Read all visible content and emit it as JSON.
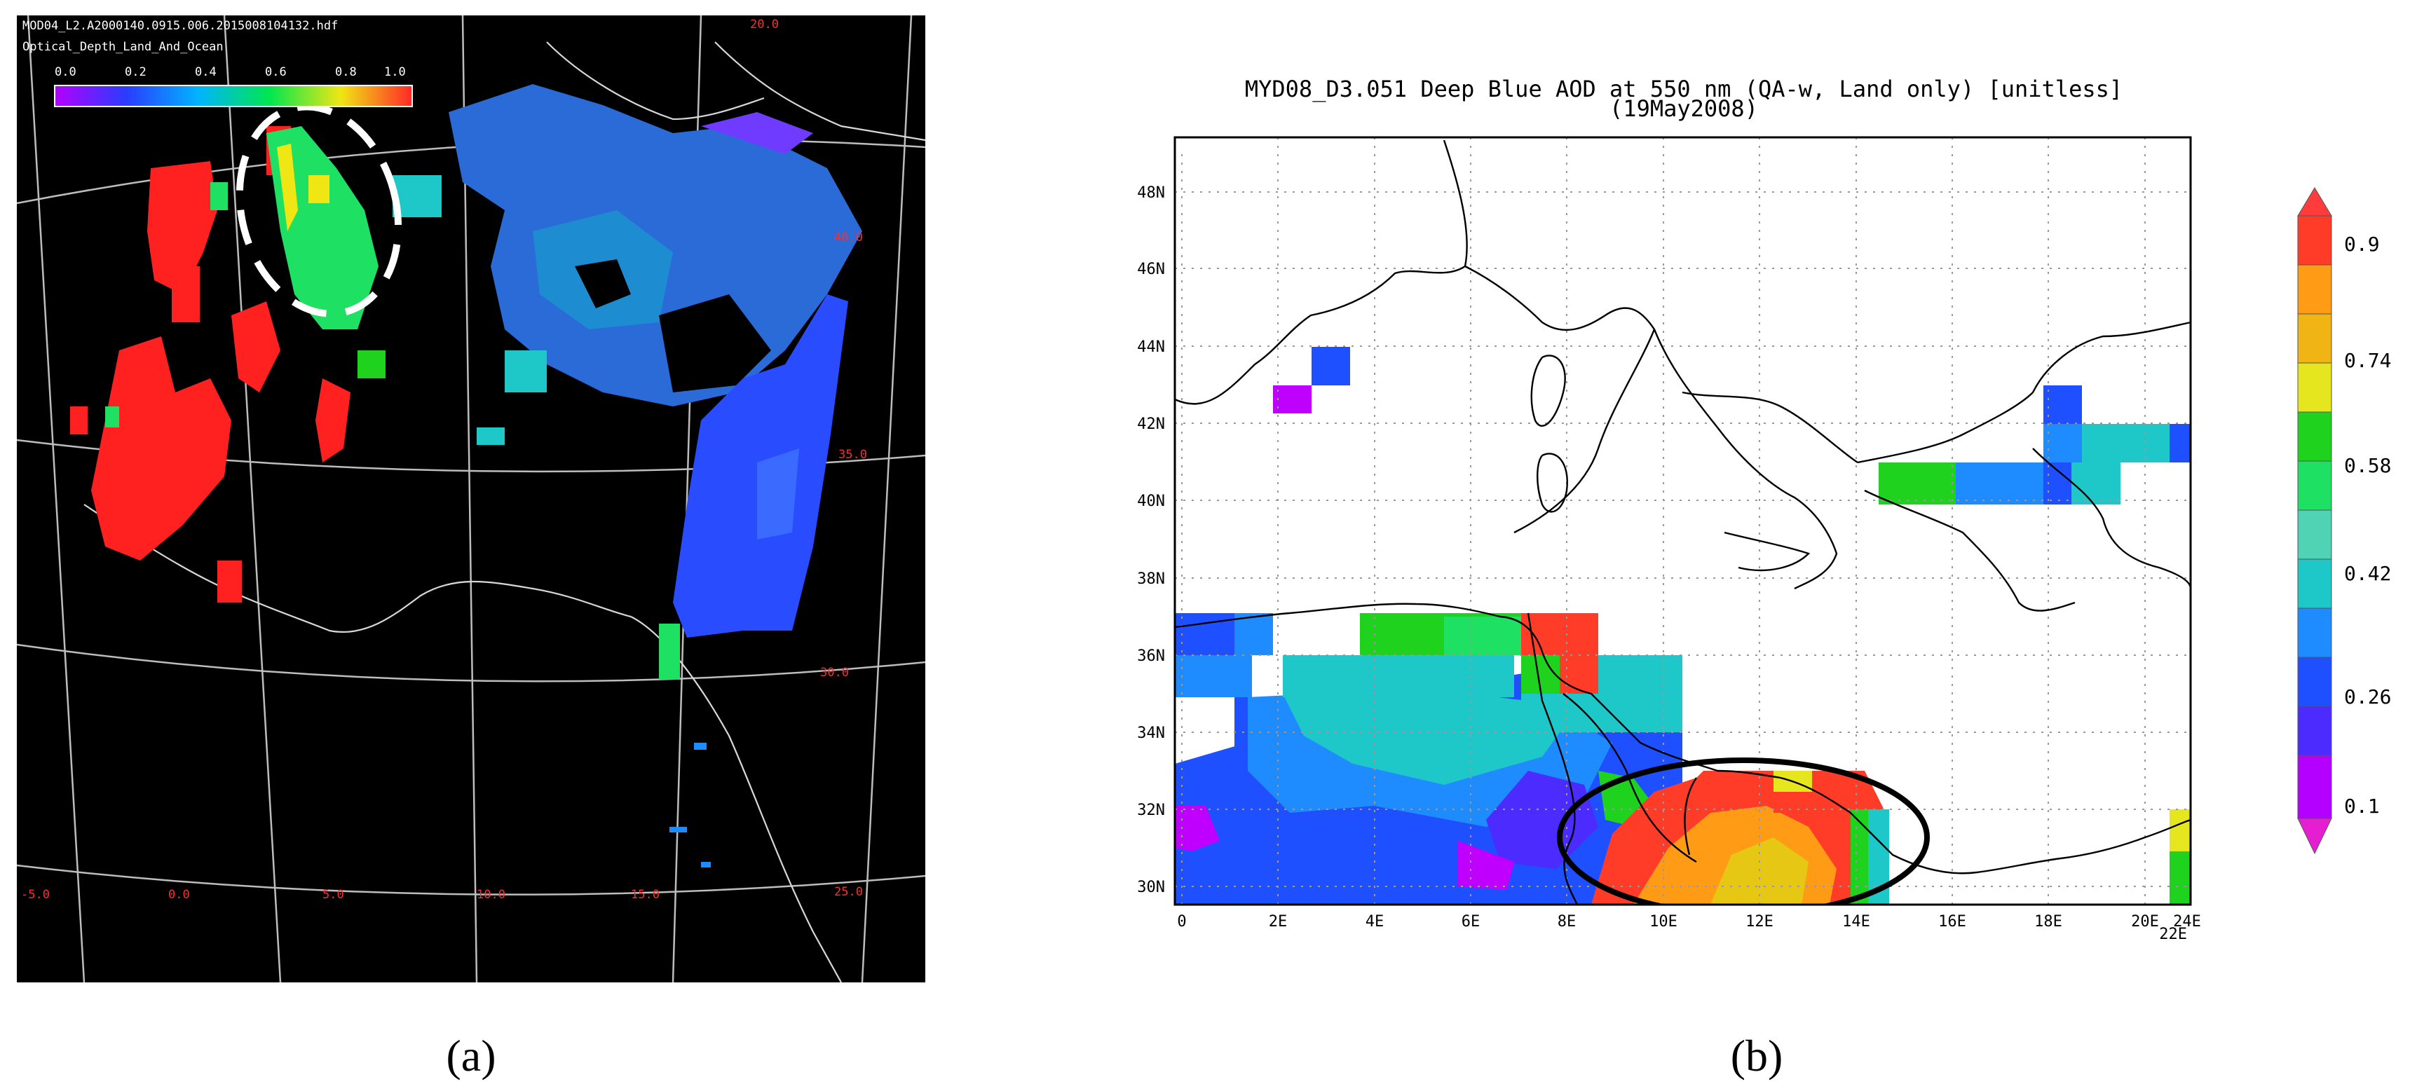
{
  "panel_a": {
    "header_line1": "MOD04_L2.A2000140.0915.006.2015008104132.hdf",
    "header_line2": "Optical_Depth_Land_And_Ocean",
    "colorbar_ticks": [
      "0.0",
      "0.2",
      "0.4",
      "0.6",
      "0.8",
      "1.0"
    ],
    "grid_labels": [
      "40.0",
      "35.0",
      "30.0",
      "25.0",
      "20.0",
      "15.0",
      "10.0",
      "5.0",
      "0.0",
      "-5.0"
    ],
    "caption": "(a)"
  },
  "panel_b": {
    "title_line1": "MYD08_D3.051 Deep Blue AOD at 550 nm (QA-w, Land only) [unitless]",
    "title_line2": "(19May2008)",
    "lat_labels": [
      "48N",
      "46N",
      "44N",
      "42N",
      "40N",
      "38N",
      "36N",
      "34N",
      "32N",
      "30N"
    ],
    "lon_labels": [
      "0",
      "2E",
      "4E",
      "6E",
      "8E",
      "10E",
      "12E",
      "14E",
      "16E",
      "18E",
      "20E",
      "22E",
      "24E"
    ],
    "colorbar_labels": [
      "0.9",
      "0.74",
      "0.58",
      "0.42",
      "0.26",
      "0.1"
    ],
    "caption": "(b)"
  },
  "colors": {
    "aod_scale": [
      "#c000ff",
      "#4b2bff",
      "#1e50ff",
      "#1e8cff",
      "#1ec8c8",
      "#1ee164",
      "#1ed21e",
      "#e6e61e",
      "#ff9b14",
      "#ff3c28"
    ]
  }
}
